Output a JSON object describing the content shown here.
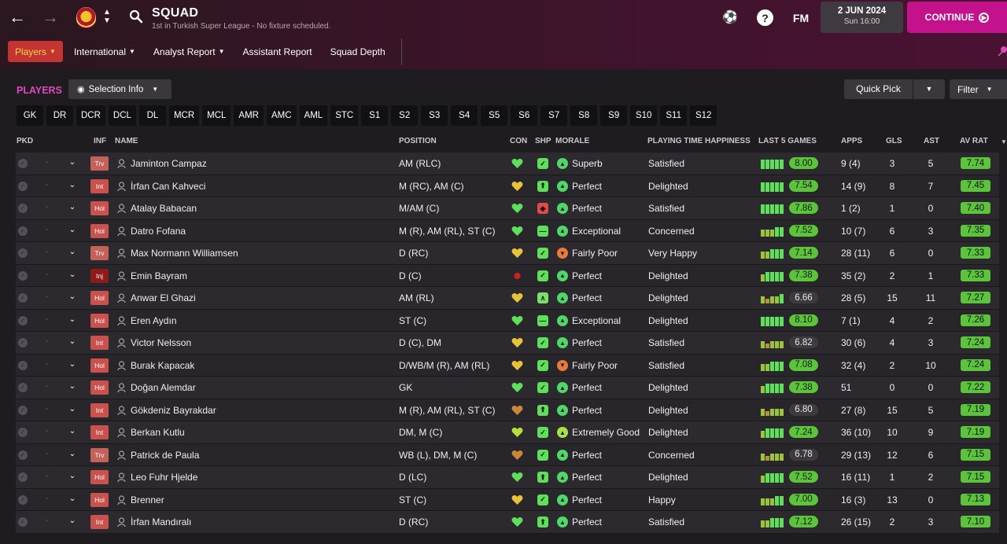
{
  "header": {
    "title": "SQUAD",
    "subtitle": "1st in Turkish Super League - No fixture scheduled.",
    "fm_label": "FM",
    "help_label": "?",
    "date": "2 JUN 2024",
    "time": "Sun 16:00",
    "continue_label": "CONTINUE"
  },
  "subnav": [
    {
      "label": "Players",
      "has_dropdown": true,
      "active": true
    },
    {
      "label": "International",
      "has_dropdown": true
    },
    {
      "label": "Analyst Report",
      "has_dropdown": true
    },
    {
      "label": "Assistant Report",
      "has_dropdown": false
    },
    {
      "label": "Squad Depth",
      "has_dropdown": false
    }
  ],
  "toolbar": {
    "players_label": "PLAYERS",
    "selection_info": "Selection Info",
    "quick_pick": "Quick Pick",
    "filter": "Filter"
  },
  "position_chips": [
    "GK",
    "DR",
    "DCR",
    "DCL",
    "DL",
    "MCR",
    "MCL",
    "AMR",
    "AMC",
    "AML",
    "STC",
    "S1",
    "S2",
    "S3",
    "S4",
    "S5",
    "S6",
    "S7",
    "S8",
    "S9",
    "S10",
    "S11",
    "S12"
  ],
  "columns": {
    "pkd": "PKD",
    "inf": "INF",
    "name": "NAME",
    "position": "POSITION",
    "con": "CON",
    "shp": "SHP",
    "morale": "MORALE",
    "pth": "PLAYING TIME HAPPINESS",
    "last5": "LAST 5 GAMES",
    "apps": "APPS",
    "gls": "GLS",
    "ast": "AST",
    "avrat": "AV RAT"
  },
  "colors": {
    "accent_pink": "#c4128c",
    "players_label": "#e048b7",
    "rating_green": "#5cc43a",
    "rating_dark": "#3e3b3f"
  },
  "players": [
    {
      "inf": "Trv",
      "name": "Jaminton Campaz",
      "position": "AM (RLC)",
      "con": "green",
      "shp": "ok",
      "morale_icon": "up",
      "morale": "Superb",
      "pth": "Satisfied",
      "form": [
        3,
        3,
        3,
        3,
        3
      ],
      "form_rating": "8.00",
      "form_green": true,
      "apps": "9 (4)",
      "gls": "3",
      "ast": "5",
      "avrat": "7.74"
    },
    {
      "inf": "Int",
      "name": "İrfan Can Kahveci",
      "position": "M (RC), AM (C)",
      "con": "gold",
      "shp": "fit",
      "morale_icon": "up",
      "morale": "Perfect",
      "pth": "Delighted",
      "form": [
        3,
        3,
        3,
        3,
        3
      ],
      "form_rating": "7.54",
      "form_green": true,
      "apps": "14 (9)",
      "gls": "8",
      "ast": "7",
      "avrat": "7.45"
    },
    {
      "inf": "Hol",
      "name": "Atalay Babacan",
      "position": "M/AM (C)",
      "con": "green",
      "shp": "bad",
      "morale_icon": "up",
      "morale": "Perfect",
      "pth": "Satisfied",
      "form": [
        3,
        3,
        3,
        3,
        3
      ],
      "form_rating": "7.86",
      "form_green": true,
      "apps": "1 (2)",
      "gls": "1",
      "ast": "0",
      "avrat": "7.40"
    },
    {
      "inf": "Hol",
      "name": "Datro Fofana",
      "position": "M (R), AM (RL), ST (C)",
      "con": "green",
      "shp": "flat",
      "morale_icon": "up",
      "morale": "Exceptional",
      "pth": "Concerned",
      "form": [
        2,
        2,
        2,
        3,
        3
      ],
      "form_rating": "7.52",
      "form_green": true,
      "apps": "10 (7)",
      "gls": "6",
      "ast": "3",
      "avrat": "7.35"
    },
    {
      "inf": "Trv",
      "name": "Max Normann Williamsen",
      "position": "D (RC)",
      "con": "gold",
      "shp": "ok",
      "morale_icon": "down",
      "morale": "Fairly Poor",
      "pth": "Very Happy",
      "form": [
        2,
        2,
        3,
        3,
        3
      ],
      "form_rating": "7.14",
      "form_green": true,
      "apps": "28 (11)",
      "gls": "6",
      "ast": "0",
      "avrat": "7.33"
    },
    {
      "inf": "Inj",
      "name": "Emin Bayram",
      "position": "D (C)",
      "con": "injured",
      "shp": "ok",
      "morale_icon": "up",
      "morale": "Perfect",
      "pth": "Delighted",
      "form": [
        2,
        3,
        3,
        3,
        3
      ],
      "form_rating": "7.38",
      "form_green": true,
      "apps": "35 (2)",
      "gls": "2",
      "ast": "1",
      "avrat": "7.33"
    },
    {
      "inf": "Hol",
      "name": "Anwar El Ghazi",
      "position": "AM (RL)",
      "con": "gold",
      "shp": "up",
      "morale_icon": "up",
      "morale": "Perfect",
      "pth": "Delighted",
      "form": [
        2,
        1,
        2,
        2,
        3
      ],
      "form_rating": "6.66",
      "form_green": false,
      "apps": "28 (5)",
      "gls": "15",
      "ast": "11",
      "avrat": "7.27"
    },
    {
      "inf": "Hol",
      "name": "Eren Aydın",
      "position": "ST (C)",
      "con": "green",
      "shp": "flat",
      "morale_icon": "up",
      "morale": "Exceptional",
      "pth": "Delighted",
      "form": [
        3,
        3,
        3,
        3,
        3
      ],
      "form_rating": "8.10",
      "form_green": true,
      "apps": "7 (1)",
      "gls": "4",
      "ast": "2",
      "avrat": "7.26"
    },
    {
      "inf": "Int",
      "name": "Victor Nelsson",
      "position": "D (C), DM",
      "con": "gold",
      "shp": "ok",
      "morale_icon": "up",
      "morale": "Perfect",
      "pth": "Satisfied",
      "form": [
        2,
        1,
        2,
        2,
        2
      ],
      "form_rating": "6.82",
      "form_green": false,
      "apps": "30 (6)",
      "gls": "4",
      "ast": "3",
      "avrat": "7.24"
    },
    {
      "inf": "Hol",
      "name": "Burak Kapacak",
      "position": "D/WB/M (R), AM (RL)",
      "con": "gold",
      "shp": "ok",
      "morale_icon": "down",
      "morale": "Fairly Poor",
      "pth": "Satisfied",
      "form": [
        2,
        2,
        3,
        3,
        3
      ],
      "form_rating": "7.08",
      "form_green": true,
      "apps": "32 (4)",
      "gls": "2",
      "ast": "10",
      "avrat": "7.24"
    },
    {
      "inf": "Hol",
      "name": "Doğan Alemdar",
      "position": "GK",
      "con": "green",
      "shp": "ok",
      "morale_icon": "up",
      "morale": "Perfect",
      "pth": "Delighted",
      "form": [
        2,
        3,
        3,
        3,
        3
      ],
      "form_rating": "7.38",
      "form_green": true,
      "apps": "51",
      "gls": "0",
      "ast": "0",
      "avrat": "7.22"
    },
    {
      "inf": "Int",
      "name": "Gökdeniz Bayrakdar",
      "position": "M (R), AM (RL), ST (C)",
      "con": "bronze",
      "shp": "fit",
      "morale_icon": "up",
      "morale": "Perfect",
      "pth": "Delighted",
      "form": [
        2,
        1,
        2,
        2,
        2
      ],
      "form_rating": "6.80",
      "form_green": false,
      "apps": "27 (8)",
      "gls": "15",
      "ast": "5",
      "avrat": "7.19"
    },
    {
      "inf": "Int",
      "name": "Berkan Kutlu",
      "position": "DM, M (C)",
      "con": "lime",
      "shp": "ok",
      "morale_icon": "up2",
      "morale": "Extremely Good",
      "pth": "Delighted",
      "form": [
        2,
        3,
        3,
        3,
        3
      ],
      "form_rating": "7.24",
      "form_green": true,
      "apps": "36 (10)",
      "gls": "10",
      "ast": "9",
      "avrat": "7.19"
    },
    {
      "inf": "Trv",
      "name": "Patrick de Paula",
      "position": "WB (L), DM, M (C)",
      "con": "bronze",
      "shp": "ok",
      "morale_icon": "up",
      "morale": "Perfect",
      "pth": "Concerned",
      "form": [
        2,
        1,
        2,
        2,
        2
      ],
      "form_rating": "6.78",
      "form_green": false,
      "apps": "29 (13)",
      "gls": "12",
      "ast": "6",
      "avrat": "7.15"
    },
    {
      "inf": "Hol",
      "name": "Leo Fuhr Hjelde",
      "position": "D (LC)",
      "con": "green",
      "shp": "fit",
      "morale_icon": "up",
      "morale": "Perfect",
      "pth": "Delighted",
      "form": [
        2,
        3,
        3,
        3,
        3
      ],
      "form_rating": "7.52",
      "form_green": true,
      "apps": "16 (11)",
      "gls": "1",
      "ast": "2",
      "avrat": "7.15"
    },
    {
      "inf": "Hol",
      "name": "Brenner",
      "position": "ST (C)",
      "con": "gold",
      "shp": "ok",
      "morale_icon": "up",
      "morale": "Perfect",
      "pth": "Happy",
      "form": [
        2,
        2,
        2,
        3,
        3
      ],
      "form_rating": "7.00",
      "form_green": true,
      "apps": "16 (3)",
      "gls": "13",
      "ast": "0",
      "avrat": "7.13"
    },
    {
      "inf": "Int",
      "name": "İrfan Mandıralı",
      "position": "D (RC)",
      "con": "green",
      "shp": "fit",
      "morale_icon": "up",
      "morale": "Perfect",
      "pth": "Satisfied",
      "form": [
        2,
        2,
        3,
        3,
        3
      ],
      "form_rating": "7.12",
      "form_green": true,
      "apps": "26 (15)",
      "gls": "2",
      "ast": "3",
      "avrat": "7.10"
    }
  ]
}
